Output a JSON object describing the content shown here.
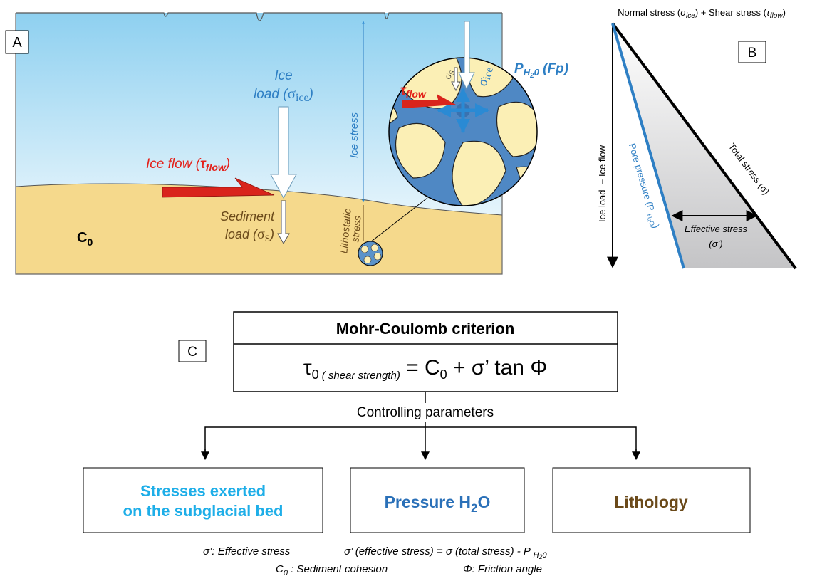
{
  "panel_a": {
    "label": "A",
    "ice_load_line1": "Ice",
    "ice_load_line2": [
      "load (",
      "σ",
      "ice",
      ")"
    ],
    "ice_flow": [
      "Ice flow (",
      "τ",
      "flow",
      ")"
    ],
    "sediment_load_line1": "Sediment",
    "sediment_load_line2": [
      "load (",
      "σ",
      "S",
      ")"
    ],
    "ice_stress": "Ice stress",
    "lithostatic_stress": [
      "Lithostatic",
      "stress"
    ],
    "cohesion": [
      "C",
      "0"
    ],
    "zoom": {
      "tau": [
        "τ",
        "flow"
      ],
      "pore_pressure": [
        "P",
        "H",
        "2",
        "0",
        " (Fp)"
      ],
      "sigma_ice": [
        "σ",
        "ice"
      ],
      "sigma_s": [
        "σ",
        "S"
      ]
    }
  },
  "panel_b": {
    "label": "B",
    "top": [
      "Normal stress (",
      "σ",
      "ice",
      ") + Shear stress (",
      "τ",
      "flow",
      ")"
    ],
    "vertical_axis": "Ice load  + Ice flow",
    "pore_pressure": [
      "Pore pressure (P ",
      "H",
      "2",
      "O",
      ")"
    ],
    "total_stress": "Total stress (σ)",
    "effective_stress": "Effective stress",
    "effective_symbol": "(σ’)"
  },
  "panel_c": {
    "label": "C",
    "title": "Mohr-Coulomb criterion",
    "formula": [
      "τ",
      "0",
      " ( shear strength)",
      " = C",
      "0",
      " + σ’ tan Φ"
    ],
    "connector": "Controlling parameters",
    "stresses": [
      "Stresses exerted",
      "on the subglacial bed"
    ],
    "pressure": [
      "Pressure H",
      "2",
      "O"
    ],
    "lithology": "Lithology"
  },
  "legend": {
    "line1": [
      "σ’: Effective stress",
      "σ’ (effective stress) = σ (total stress) - P ",
      "H",
      "2",
      "0"
    ],
    "line2": [
      "C",
      "0",
      " : Sediment cohesion",
      "Φ: Friction angle"
    ]
  }
}
